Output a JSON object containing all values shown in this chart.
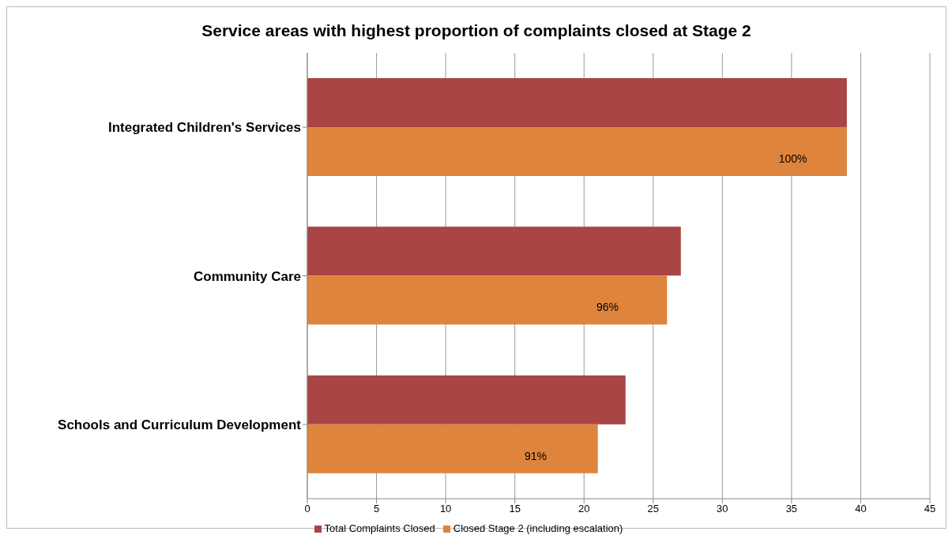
{
  "chart_data": {
    "type": "bar",
    "orientation": "horizontal",
    "title": "Service areas with highest proportion of complaints closed at Stage 2",
    "categories": [
      "Integrated Children's Services",
      "Community Care",
      "Schools and Curriculum Development"
    ],
    "series": [
      {
        "name": "Total Complaints Closed",
        "color": "#a94545",
        "values": [
          39,
          27,
          23
        ]
      },
      {
        "name": "Closed Stage 2 (including escalation)",
        "color": "#de843c",
        "values": [
          39,
          26,
          21
        ]
      }
    ],
    "annotations": [
      {
        "text": "100%",
        "x": 35.1,
        "y": "Integrated Children's Services"
      },
      {
        "text": "96%",
        "x": 21.7,
        "y": "Community Care"
      },
      {
        "text": "91%",
        "x": 16.5,
        "y": "Schools and Curriculum Development"
      }
    ],
    "xlim": [
      0,
      45
    ],
    "xticks": [
      0,
      5,
      10,
      15,
      20,
      25,
      30,
      35,
      40,
      45
    ],
    "grid": "x",
    "legend": "bottom"
  }
}
